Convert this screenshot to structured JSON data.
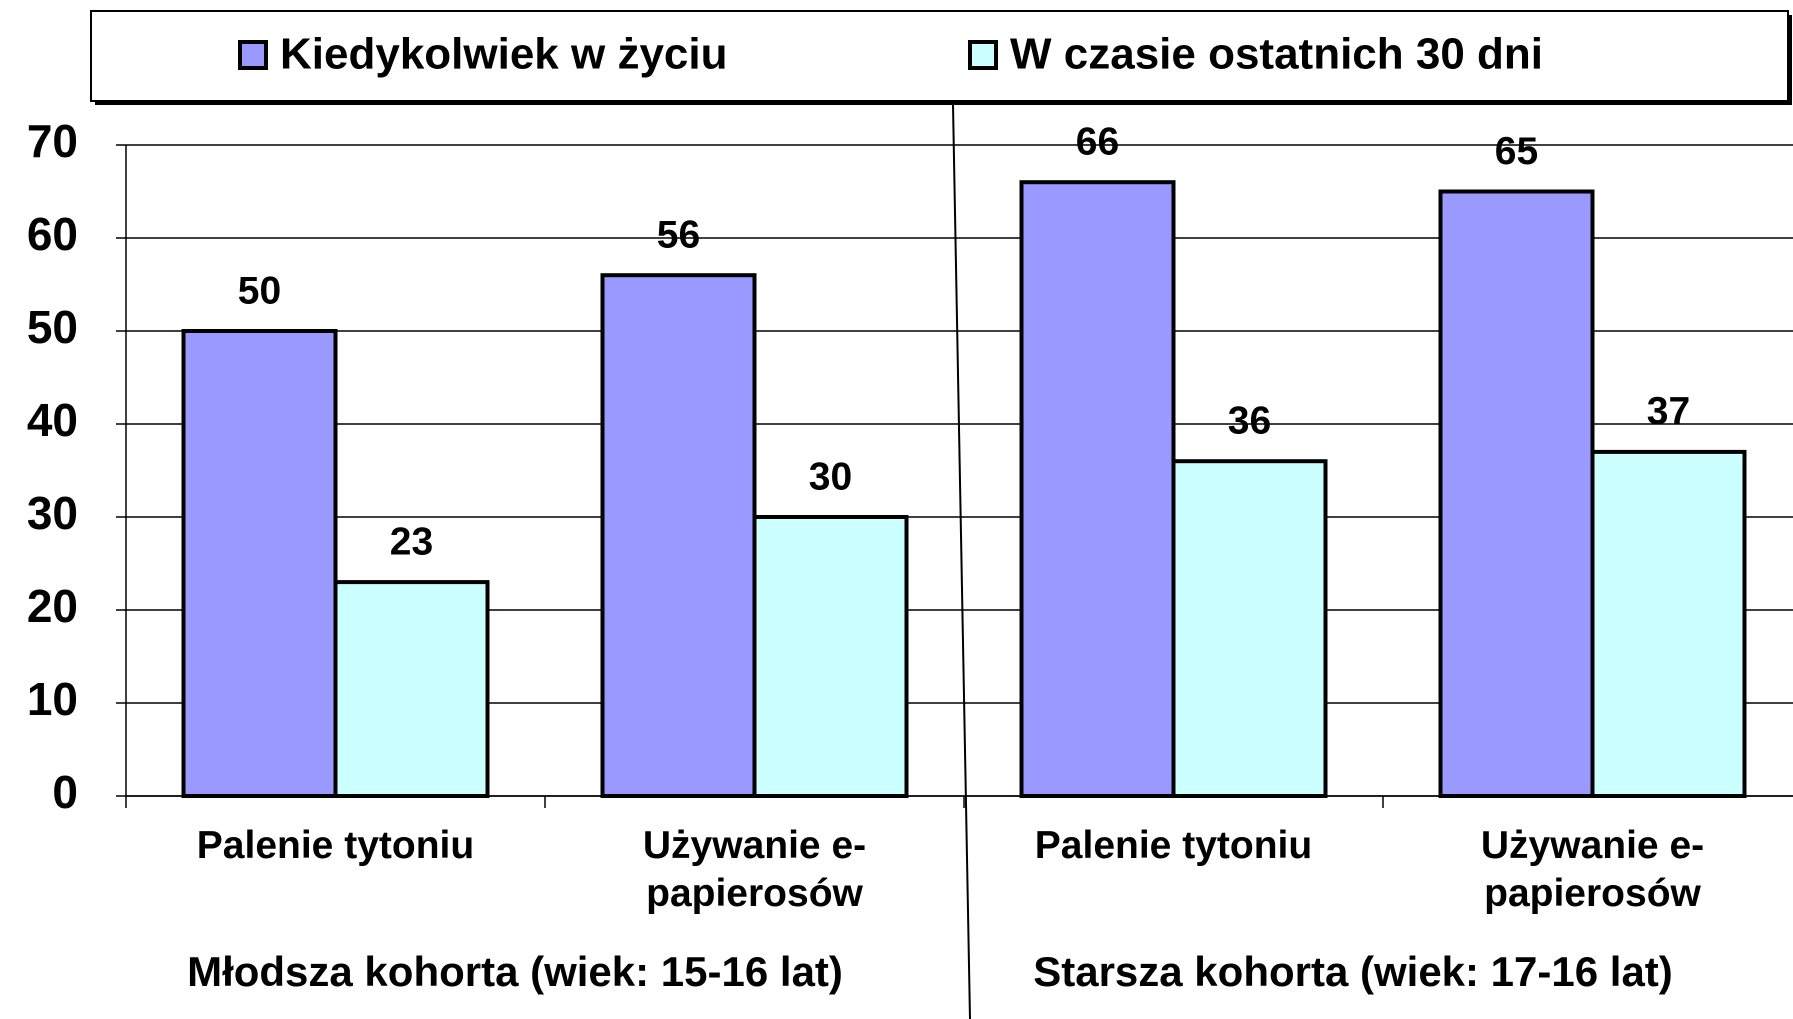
{
  "chart_data": {
    "type": "bar",
    "categories": [
      "Palenie tytoniu",
      "Używanie e-papierosów",
      "Palenie tytoniu",
      "Używanie e-papierosów"
    ],
    "groups": [
      "Młodsza kohorta (wiek: 15-16 lat)",
      "Starsza kohorta (wiek: 17-16 lat)"
    ],
    "series": [
      {
        "name": "Kiedykolwiek w życiu",
        "color": "#9999ff",
        "values": [
          50,
          56,
          66,
          65
        ]
      },
      {
        "name": "W czasie ostatnich 30 dni",
        "color": "#ccffff",
        "values": [
          23,
          30,
          36,
          37
        ]
      }
    ],
    "ylim": [
      0,
      70
    ],
    "yticks": [
      0,
      10,
      20,
      30,
      40,
      50,
      60,
      70
    ],
    "grid": true,
    "legend": "top"
  }
}
